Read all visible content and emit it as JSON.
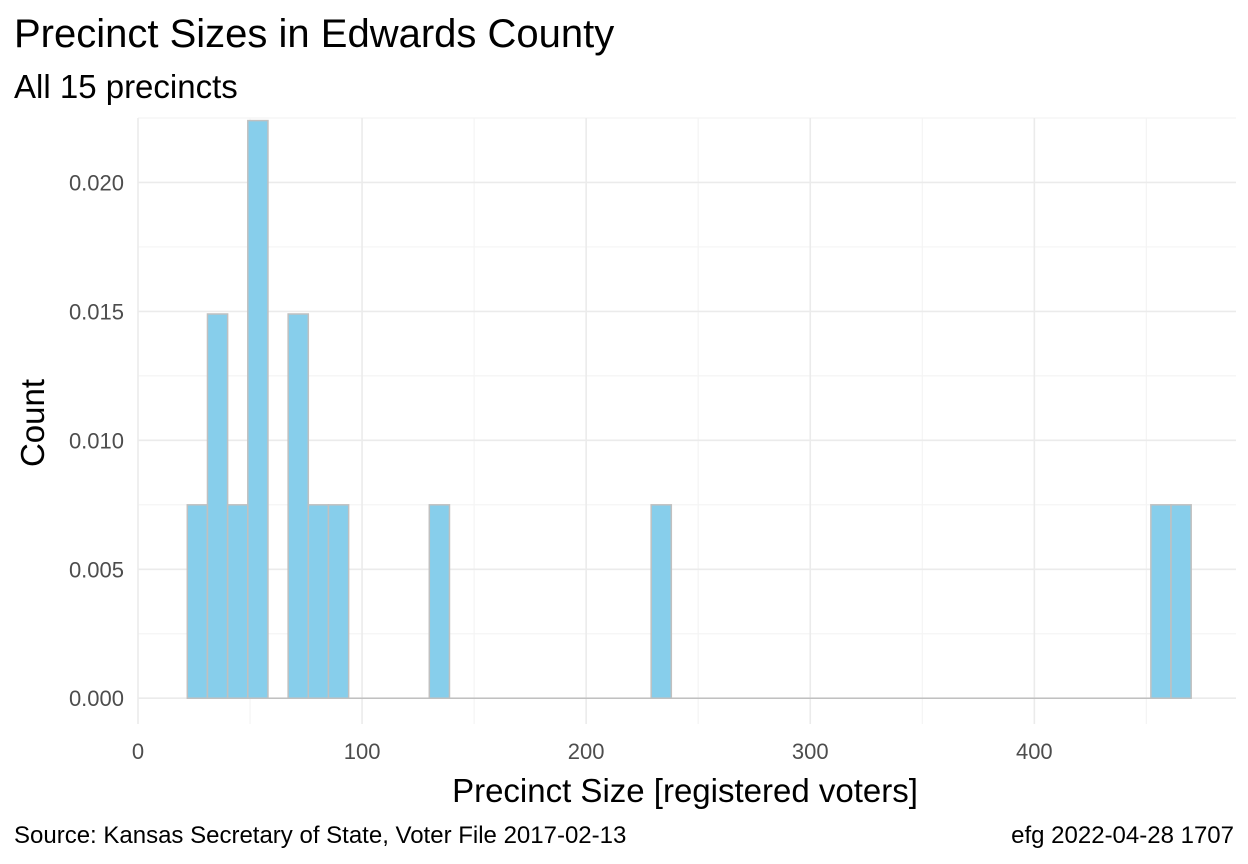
{
  "chart_data": {
    "type": "bar",
    "title": "Precinct Sizes in Edwards County",
    "subtitle": "All 15 precincts",
    "xlabel": "Precinct Size [registered voters]",
    "ylabel": "Count",
    "xlim": [
      0,
      490
    ],
    "ylim": [
      -0.001,
      0.0225
    ],
    "x_ticks": [
      0,
      100,
      200,
      300,
      400
    ],
    "y_ticks": [
      0.0,
      0.005,
      0.01,
      0.015,
      0.02
    ],
    "x_tick_labels": [
      "0",
      "100",
      "200",
      "300",
      "400"
    ],
    "y_tick_labels": [
      "0.000",
      "0.005",
      "0.010",
      "0.015",
      "0.020"
    ],
    "grid": true,
    "bin_width": 9,
    "bins": [
      {
        "start": 22,
        "end": 31,
        "value": 0.0075
      },
      {
        "start": 31,
        "end": 40,
        "value": 0.0149
      },
      {
        "start": 40,
        "end": 49,
        "value": 0.0075
      },
      {
        "start": 49,
        "end": 58,
        "value": 0.0224
      },
      {
        "start": 67,
        "end": 76,
        "value": 0.0149
      },
      {
        "start": 76,
        "end": 85,
        "value": 0.0075
      },
      {
        "start": 85,
        "end": 94,
        "value": 0.0075
      },
      {
        "start": 130,
        "end": 139,
        "value": 0.0075
      },
      {
        "start": 229,
        "end": 238,
        "value": 0.0075
      },
      {
        "start": 452,
        "end": 461,
        "value": 0.0075
      },
      {
        "start": 461,
        "end": 470,
        "value": 0.0075
      }
    ],
    "baseline_range": [
      22,
      470
    ],
    "colors": {
      "fill": "#87CEEB",
      "stroke": "#C0C0C0",
      "grid_major": "#EBEBEB",
      "grid_minor": "#F4F4F4"
    }
  },
  "caption": {
    "source": "Source:  Kansas Secretary of State, Voter File  2017-02-13",
    "stamp": "efg 2022-04-28 1707"
  }
}
